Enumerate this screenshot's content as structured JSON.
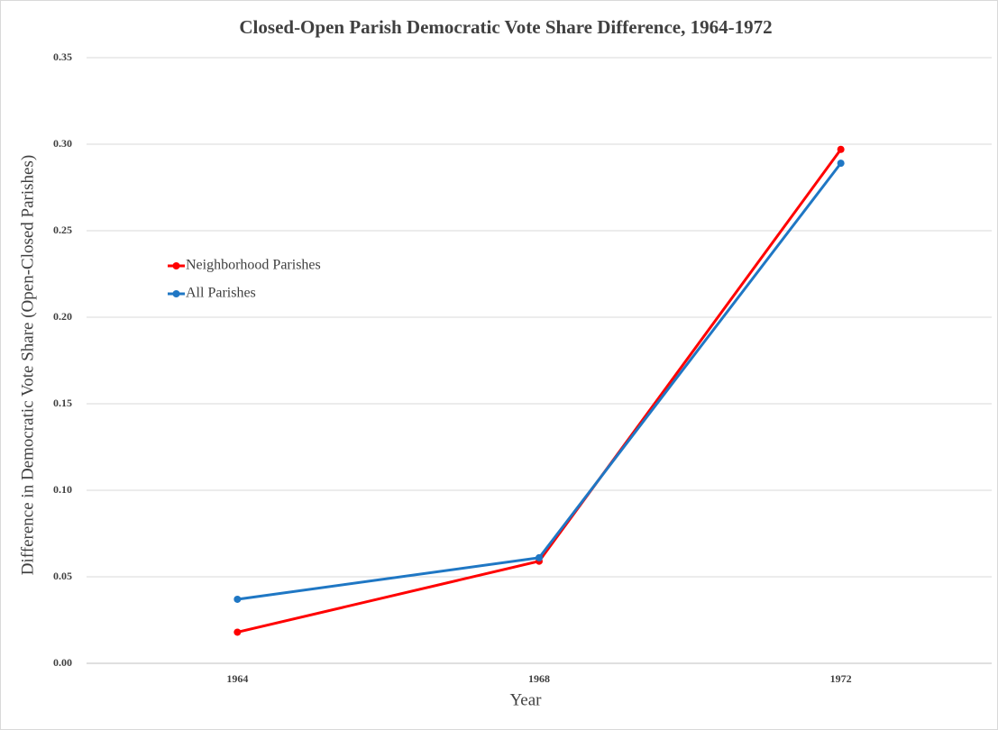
{
  "chart_data": {
    "type": "line",
    "title": "Closed-Open Parish Democratic Vote Share Difference, 1964-1972",
    "x_label": "Year",
    "y_label": "Difference in Democratic Vote Share (Open-Closed Parishes)",
    "categories": [
      "1964",
      "1968",
      "1972"
    ],
    "series": [
      {
        "name": "Neighborhood Parishes",
        "color": "#ff0000",
        "values": [
          0.018,
          0.059,
          0.297
        ]
      },
      {
        "name": "All Parishes",
        "color": "#1f77c4",
        "values": [
          0.037,
          0.061,
          0.289
        ]
      }
    ],
    "ylim": [
      0,
      0.35
    ],
    "yticks": [
      {
        "value": 0,
        "label": "0.00"
      },
      {
        "value": 0.05,
        "label": "0.05"
      },
      {
        "value": 0.1,
        "label": "0.10"
      },
      {
        "value": 0.15,
        "label": "0.15"
      },
      {
        "value": 0.2,
        "label": "0.20"
      },
      {
        "value": 0.25,
        "label": "0.25"
      },
      {
        "value": 0.3,
        "label": "0.30"
      },
      {
        "value": 0.35,
        "label": "0.35"
      }
    ],
    "grid": true,
    "legend": "upper left"
  }
}
